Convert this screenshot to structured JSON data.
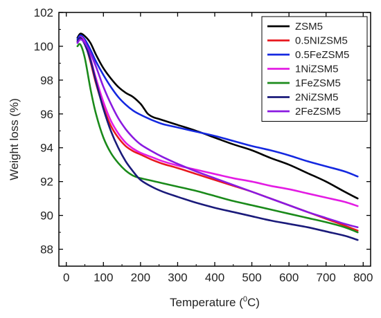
{
  "chart_data": {
    "type": "line",
    "xlabel_main": "Temperature (",
    "xlabel_sup": "0",
    "xlabel_unit": "C)",
    "ylabel": "Weight loss (%)",
    "xlim": [
      -20,
      820
    ],
    "ylim": [
      87,
      102
    ],
    "xticks": [
      0,
      100,
      200,
      300,
      400,
      500,
      600,
      700,
      800
    ],
    "yticks": [
      88,
      90,
      92,
      94,
      96,
      98,
      100,
      102
    ],
    "legend_position": "top-right",
    "grid": false,
    "series": [
      {
        "name": "ZSM5",
        "color": "#000000",
        "x": [
          30,
          38,
          50,
          65,
          80,
          100,
          120,
          140,
          160,
          180,
          200,
          210,
          220,
          235,
          250,
          300,
          350,
          400,
          450,
          500,
          550,
          600,
          650,
          700,
          750,
          785
        ],
        "y": [
          100.5,
          100.75,
          100.6,
          100.2,
          99.5,
          98.7,
          98.1,
          97.6,
          97.25,
          97.0,
          96.6,
          96.3,
          96.0,
          95.8,
          95.7,
          95.35,
          95.0,
          94.6,
          94.2,
          93.85,
          93.4,
          93.0,
          92.5,
          92.0,
          91.4,
          91.0
        ]
      },
      {
        "name": "0.5NIZSM5",
        "color": "#e8181e",
        "x": [
          30,
          38,
          50,
          65,
          80,
          100,
          120,
          140,
          160,
          180,
          200,
          230,
          260,
          300,
          350,
          400,
          450,
          500,
          550,
          600,
          650,
          700,
          750,
          785
        ],
        "y": [
          100.3,
          100.6,
          100.2,
          99.1,
          97.8,
          96.4,
          95.3,
          94.6,
          94.1,
          93.8,
          93.6,
          93.3,
          93.05,
          92.8,
          92.45,
          92.1,
          91.75,
          91.4,
          91.0,
          90.6,
          90.2,
          89.8,
          89.4,
          89.1
        ]
      },
      {
        "name": "0.5FeZSM5",
        "color": "#1428e0",
        "x": [
          30,
          38,
          50,
          65,
          80,
          100,
          120,
          140,
          160,
          180,
          200,
          230,
          260,
          300,
          350,
          400,
          450,
          500,
          550,
          600,
          650,
          700,
          750,
          785
        ],
        "y": [
          100.4,
          100.65,
          100.4,
          99.8,
          99.1,
          98.3,
          97.6,
          97.0,
          96.55,
          96.2,
          95.95,
          95.65,
          95.4,
          95.2,
          94.95,
          94.7,
          94.4,
          94.1,
          93.85,
          93.55,
          93.2,
          92.9,
          92.6,
          92.3
        ]
      },
      {
        "name": "1NiZSM5",
        "color": "#e31ce3",
        "x": [
          30,
          38,
          50,
          65,
          80,
          100,
          120,
          140,
          160,
          180,
          200,
          230,
          260,
          300,
          350,
          400,
          450,
          500,
          550,
          600,
          650,
          700,
          750,
          785
        ],
        "y": [
          100.2,
          100.55,
          100.25,
          99.3,
          98.1,
          96.7,
          95.6,
          94.85,
          94.3,
          93.95,
          93.7,
          93.45,
          93.2,
          92.95,
          92.7,
          92.45,
          92.2,
          92.0,
          91.75,
          91.55,
          91.3,
          91.05,
          90.8,
          90.55
        ]
      },
      {
        "name": "1FeZSM5",
        "color": "#1a8a1a",
        "x": [
          30,
          38,
          50,
          65,
          80,
          100,
          120,
          140,
          160,
          180,
          200,
          230,
          260,
          300,
          350,
          400,
          450,
          500,
          550,
          600,
          650,
          700,
          750,
          785
        ],
        "y": [
          100.0,
          100.1,
          99.3,
          97.5,
          96.0,
          94.6,
          93.7,
          93.1,
          92.65,
          92.35,
          92.2,
          92.05,
          91.9,
          91.7,
          91.45,
          91.15,
          90.85,
          90.6,
          90.35,
          90.1,
          89.85,
          89.6,
          89.3,
          89.0
        ]
      },
      {
        "name": "2NiZSM5",
        "color": "#1a1a7a",
        "x": [
          30,
          38,
          50,
          65,
          80,
          100,
          120,
          140,
          160,
          180,
          200,
          230,
          260,
          300,
          350,
          400,
          450,
          500,
          550,
          600,
          650,
          700,
          750,
          785
        ],
        "y": [
          100.3,
          100.5,
          100.1,
          99.2,
          97.9,
          96.3,
          95.0,
          94.0,
          93.2,
          92.6,
          92.1,
          91.7,
          91.4,
          91.1,
          90.75,
          90.45,
          90.2,
          89.95,
          89.7,
          89.5,
          89.3,
          89.05,
          88.8,
          88.55
        ]
      },
      {
        "name": "2FeZSM5",
        "color": "#8a1ae0",
        "x": [
          30,
          38,
          50,
          65,
          80,
          100,
          120,
          140,
          160,
          180,
          200,
          230,
          260,
          300,
          350,
          400,
          450,
          500,
          550,
          600,
          650,
          700,
          750,
          785
        ],
        "y": [
          100.2,
          100.4,
          100.2,
          99.6,
          98.8,
          97.6,
          96.6,
          95.75,
          95.1,
          94.6,
          94.2,
          93.8,
          93.45,
          93.05,
          92.6,
          92.2,
          91.8,
          91.4,
          91.0,
          90.6,
          90.2,
          89.85,
          89.5,
          89.3
        ]
      }
    ]
  }
}
